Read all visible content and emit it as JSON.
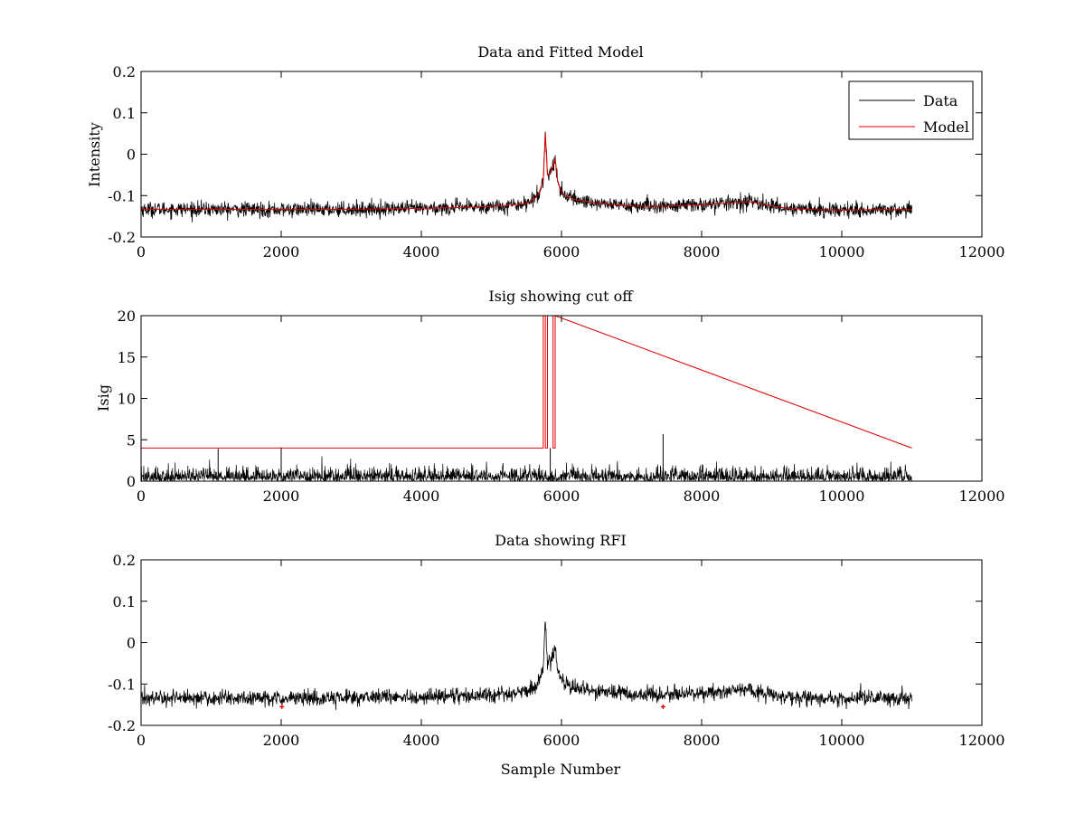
{
  "colors": {
    "data": "#000000",
    "model": "#e00000",
    "axes": "#000000",
    "background": "#ffffff"
  },
  "chart_data": [
    {
      "type": "line",
      "id": "intensity",
      "title": "Data and Fitted Model",
      "xlabel": "",
      "ylabel": "Intensity",
      "xlim": [
        0,
        12000
      ],
      "ylim": [
        -0.2,
        0.2
      ],
      "xticks": [
        0,
        2000,
        4000,
        6000,
        8000,
        10000,
        12000
      ],
      "yticks": [
        -0.2,
        -0.1,
        0,
        0.1,
        0.2
      ],
      "xtick_labels": [
        "0",
        "2000",
        "4000",
        "6000",
        "8000",
        "10000",
        "12000"
      ],
      "ytick_labels": [
        "-0.2",
        "-0.1",
        "0",
        "0.1",
        "0.2"
      ],
      "legend": {
        "position": "top-right",
        "entries": [
          "Data",
          "Model"
        ]
      },
      "series": [
        {
          "name": "Data",
          "color": "#000000",
          "style": "noisy-line",
          "noise": 0.009,
          "x": [
            0,
            1000,
            2000,
            3000,
            4000,
            4500,
            5000,
            5300,
            5500,
            5600,
            5680,
            5740,
            5770,
            5800,
            5840,
            5880,
            5910,
            5940,
            5980,
            6050,
            6200,
            6500,
            7000,
            7500,
            8000,
            8300,
            8500,
            8700,
            8900,
            9200,
            9600,
            10000,
            10500,
            11000
          ],
          "y": [
            -0.133,
            -0.133,
            -0.134,
            -0.133,
            -0.131,
            -0.129,
            -0.126,
            -0.123,
            -0.118,
            -0.11,
            -0.095,
            -0.06,
            0.055,
            -0.05,
            -0.045,
            -0.03,
            -0.005,
            -0.06,
            -0.085,
            -0.1,
            -0.11,
            -0.118,
            -0.125,
            -0.126,
            -0.122,
            -0.119,
            -0.116,
            -0.115,
            -0.122,
            -0.13,
            -0.134,
            -0.135,
            -0.134,
            -0.134
          ]
        },
        {
          "name": "Model",
          "color": "#e00000",
          "style": "line",
          "x": [
            0,
            1000,
            2000,
            3000,
            4000,
            4500,
            5000,
            5300,
            5500,
            5600,
            5680,
            5740,
            5770,
            5800,
            5840,
            5880,
            5910,
            5940,
            5980,
            6050,
            6200,
            6500,
            7000,
            7500,
            8000,
            8300,
            8500,
            8700,
            8900,
            9200,
            9600,
            10000,
            10500,
            11000
          ],
          "y": [
            -0.133,
            -0.133,
            -0.134,
            -0.133,
            -0.131,
            -0.129,
            -0.126,
            -0.123,
            -0.118,
            -0.11,
            -0.095,
            -0.06,
            0.05,
            -0.05,
            -0.045,
            -0.03,
            -0.01,
            -0.06,
            -0.085,
            -0.1,
            -0.11,
            -0.118,
            -0.125,
            -0.126,
            -0.122,
            -0.119,
            -0.116,
            -0.115,
            -0.122,
            -0.13,
            -0.134,
            -0.135,
            -0.134,
            -0.134
          ]
        }
      ]
    },
    {
      "type": "line",
      "id": "isig",
      "title": "Isig showing cut off",
      "xlabel": "",
      "ylabel": "Isig",
      "xlim": [
        0,
        12000
      ],
      "ylim": [
        0,
        20
      ],
      "xticks": [
        0,
        2000,
        4000,
        6000,
        8000,
        10000,
        12000
      ],
      "yticks": [
        0,
        5,
        10,
        15,
        20
      ],
      "xtick_labels": [
        "0",
        "2000",
        "4000",
        "6000",
        "8000",
        "10000",
        "12000"
      ],
      "ytick_labels": [
        "0",
        "5",
        "10",
        "15",
        "20"
      ],
      "series": [
        {
          "name": "Isig",
          "color": "#000000",
          "style": "abs-noise",
          "x_range": [
            0,
            11000
          ],
          "typical": 0.8,
          "max_typical": 3.5,
          "spikes": [
            {
              "x": 1100,
              "y": 3.9
            },
            {
              "x": 2000,
              "y": 4.1
            },
            {
              "x": 5840,
              "y": 4.0
            },
            {
              "x": 7450,
              "y": 5.7
            }
          ]
        },
        {
          "name": "Cut off",
          "color": "#e00000",
          "style": "line",
          "x": [
            0,
            5740,
            5740,
            5770,
            5770,
            5800,
            5800,
            5880,
            5880,
            5910,
            5910,
            11000
          ],
          "y": [
            4,
            4,
            20,
            20,
            4,
            4,
            20,
            20,
            4,
            4,
            20,
            4
          ]
        }
      ]
    },
    {
      "type": "line",
      "id": "rfi",
      "title": "Data showing RFI",
      "xlabel": "Sample Number",
      "ylabel": "",
      "xlim": [
        0,
        12000
      ],
      "ylim": [
        -0.2,
        0.2
      ],
      "xticks": [
        0,
        2000,
        4000,
        6000,
        8000,
        10000,
        12000
      ],
      "yticks": [
        -0.2,
        -0.1,
        0,
        0.1,
        0.2
      ],
      "xtick_labels": [
        "0",
        "2000",
        "4000",
        "6000",
        "8000",
        "10000",
        "12000"
      ],
      "ytick_labels": [
        "-0.2",
        "-0.1",
        "0",
        "0.1",
        "0.2"
      ],
      "series": [
        {
          "name": "Data",
          "color": "#000000",
          "style": "noisy-line",
          "noise": 0.009,
          "x": [
            0,
            1000,
            2000,
            3000,
            4000,
            4500,
            5000,
            5300,
            5500,
            5600,
            5680,
            5740,
            5770,
            5800,
            5840,
            5880,
            5910,
            5940,
            5980,
            6050,
            6200,
            6500,
            7000,
            7500,
            8000,
            8300,
            8500,
            8700,
            8900,
            9200,
            9600,
            10000,
            10500,
            11000
          ],
          "y": [
            -0.133,
            -0.133,
            -0.134,
            -0.133,
            -0.131,
            -0.129,
            -0.126,
            -0.123,
            -0.118,
            -0.11,
            -0.095,
            -0.06,
            0.055,
            -0.05,
            -0.045,
            -0.03,
            -0.005,
            -0.06,
            -0.085,
            -0.1,
            -0.11,
            -0.118,
            -0.125,
            -0.126,
            -0.122,
            -0.119,
            -0.116,
            -0.115,
            -0.122,
            -0.13,
            -0.134,
            -0.135,
            -0.134,
            -0.134
          ]
        },
        {
          "name": "RFI",
          "color": "#e00000",
          "style": "markers",
          "points": [
            {
              "x": 2010,
              "y": -0.155
            },
            {
              "x": 7450,
              "y": -0.155
            }
          ]
        }
      ]
    }
  ]
}
